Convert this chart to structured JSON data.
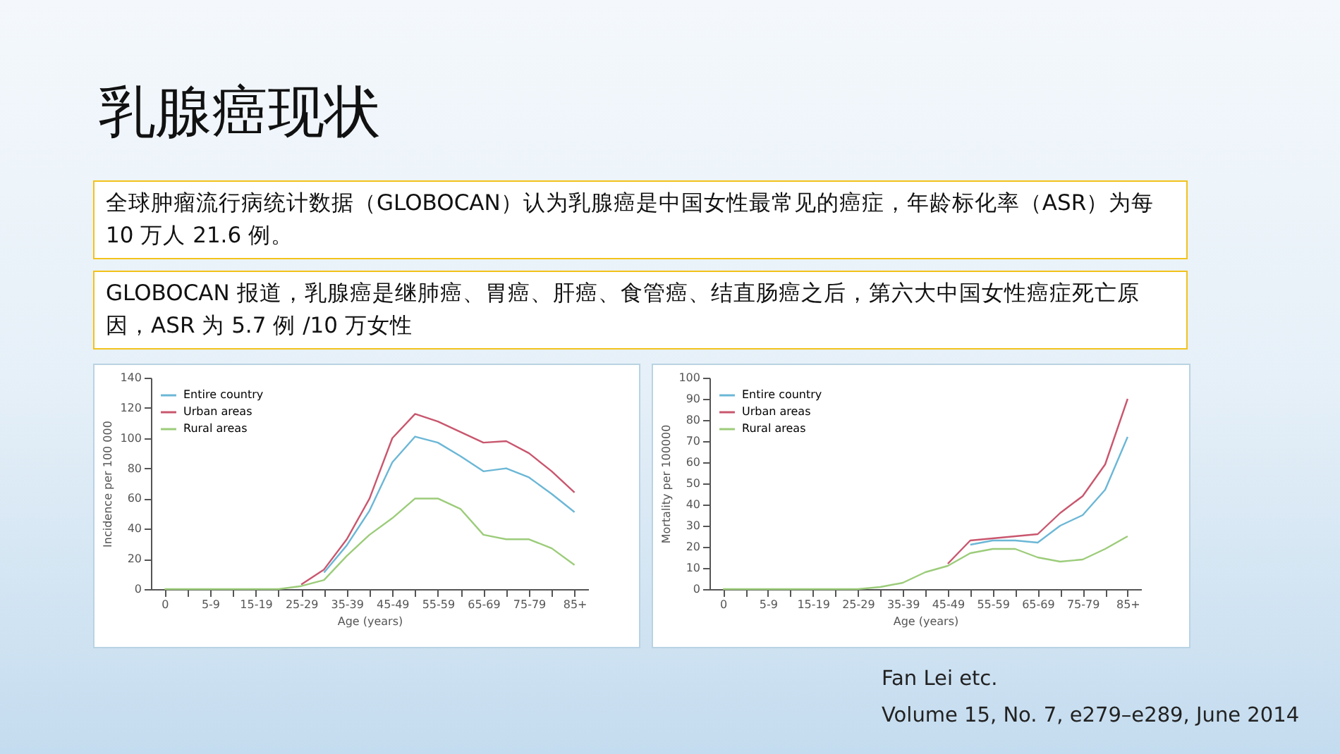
{
  "chart_data": [
    {
      "type": "other",
      "title": "乳腺癌现状",
      "annotations": [
        "全球肿瘤流行病统计数据（GLOBOCAN）认为乳腺癌是中国女性最常见的癌症，年龄标化率（ASR）为每 10 万人 21.6 例。",
        "GLOBOCAN 报道，乳腺癌是继肺癌、胃癌、肝癌、食管癌、结直肠癌之后，第六大中国女性癌症死亡原因，ASR 为 5.7 例 /10 万女性",
        "Fan Lei etc.",
        "Volume 15, No. 7, e279–e289, June 2014"
      ]
    },
    {
      "type": "line",
      "xlabel": "Age (years)",
      "ylabel": "Incidence per 100 000",
      "categories": [
        "0",
        null,
        "5-9",
        null,
        "15-19",
        null,
        "25-29",
        null,
        "35-39",
        null,
        "45-49",
        null,
        "55-59",
        null,
        "65-69",
        null,
        "75-79",
        null,
        "85+"
      ],
      "ylim": [
        0,
        140
      ],
      "yticks": [
        0,
        20,
        40,
        60,
        80,
        100,
        120,
        140
      ],
      "grid": false,
      "legend": "top left",
      "series": [
        {
          "name": "Entire country",
          "color": "#6bb7d6",
          "values": [
            null,
            null,
            null,
            null,
            null,
            null,
            null,
            11,
            29,
            52,
            84,
            101,
            97,
            88,
            78,
            80,
            74,
            63,
            51
          ]
        },
        {
          "name": "Urban areas",
          "color": "#c9566e",
          "values": [
            null,
            null,
            null,
            null,
            null,
            null,
            3,
            13,
            33,
            60,
            100,
            116,
            111,
            104,
            97,
            98,
            90,
            78,
            64
          ]
        },
        {
          "name": "Rural areas",
          "color": "#9ccc7a",
          "values": [
            0,
            0,
            0,
            0,
            0,
            0,
            2,
            6,
            22,
            36,
            47,
            60,
            60,
            53,
            36,
            33,
            33,
            27,
            16
          ]
        }
      ]
    },
    {
      "type": "line",
      "xlabel": "Age (years)",
      "ylabel": "Mortality per 100000",
      "categories": [
        "0",
        null,
        "5-9",
        null,
        "15-19",
        null,
        "25-29",
        null,
        "35-39",
        null,
        "45-49",
        null,
        "55-59",
        null,
        "65-69",
        null,
        "75-79",
        null,
        "85+"
      ],
      "ylim": [
        0,
        100
      ],
      "yticks": [
        0,
        10,
        20,
        30,
        40,
        50,
        60,
        70,
        80,
        90,
        100
      ],
      "grid": false,
      "legend": "top left",
      "series": [
        {
          "name": "Entire country",
          "color": "#6bb7d6",
          "values": [
            null,
            null,
            null,
            null,
            null,
            null,
            null,
            null,
            null,
            null,
            null,
            21,
            23,
            23,
            22,
            30,
            35,
            47,
            72
          ]
        },
        {
          "name": "Urban areas",
          "color": "#c9566e",
          "values": [
            null,
            null,
            null,
            null,
            null,
            null,
            null,
            null,
            null,
            null,
            12,
            23,
            24,
            25,
            26,
            36,
            44,
            59,
            90
          ]
        },
        {
          "name": "Rural areas",
          "color": "#9ccc7a",
          "values": [
            0,
            0,
            0,
            0,
            0,
            0,
            0,
            1,
            3,
            8,
            11,
            17,
            19,
            19,
            15,
            13,
            14,
            19,
            25
          ]
        }
      ]
    }
  ]
}
